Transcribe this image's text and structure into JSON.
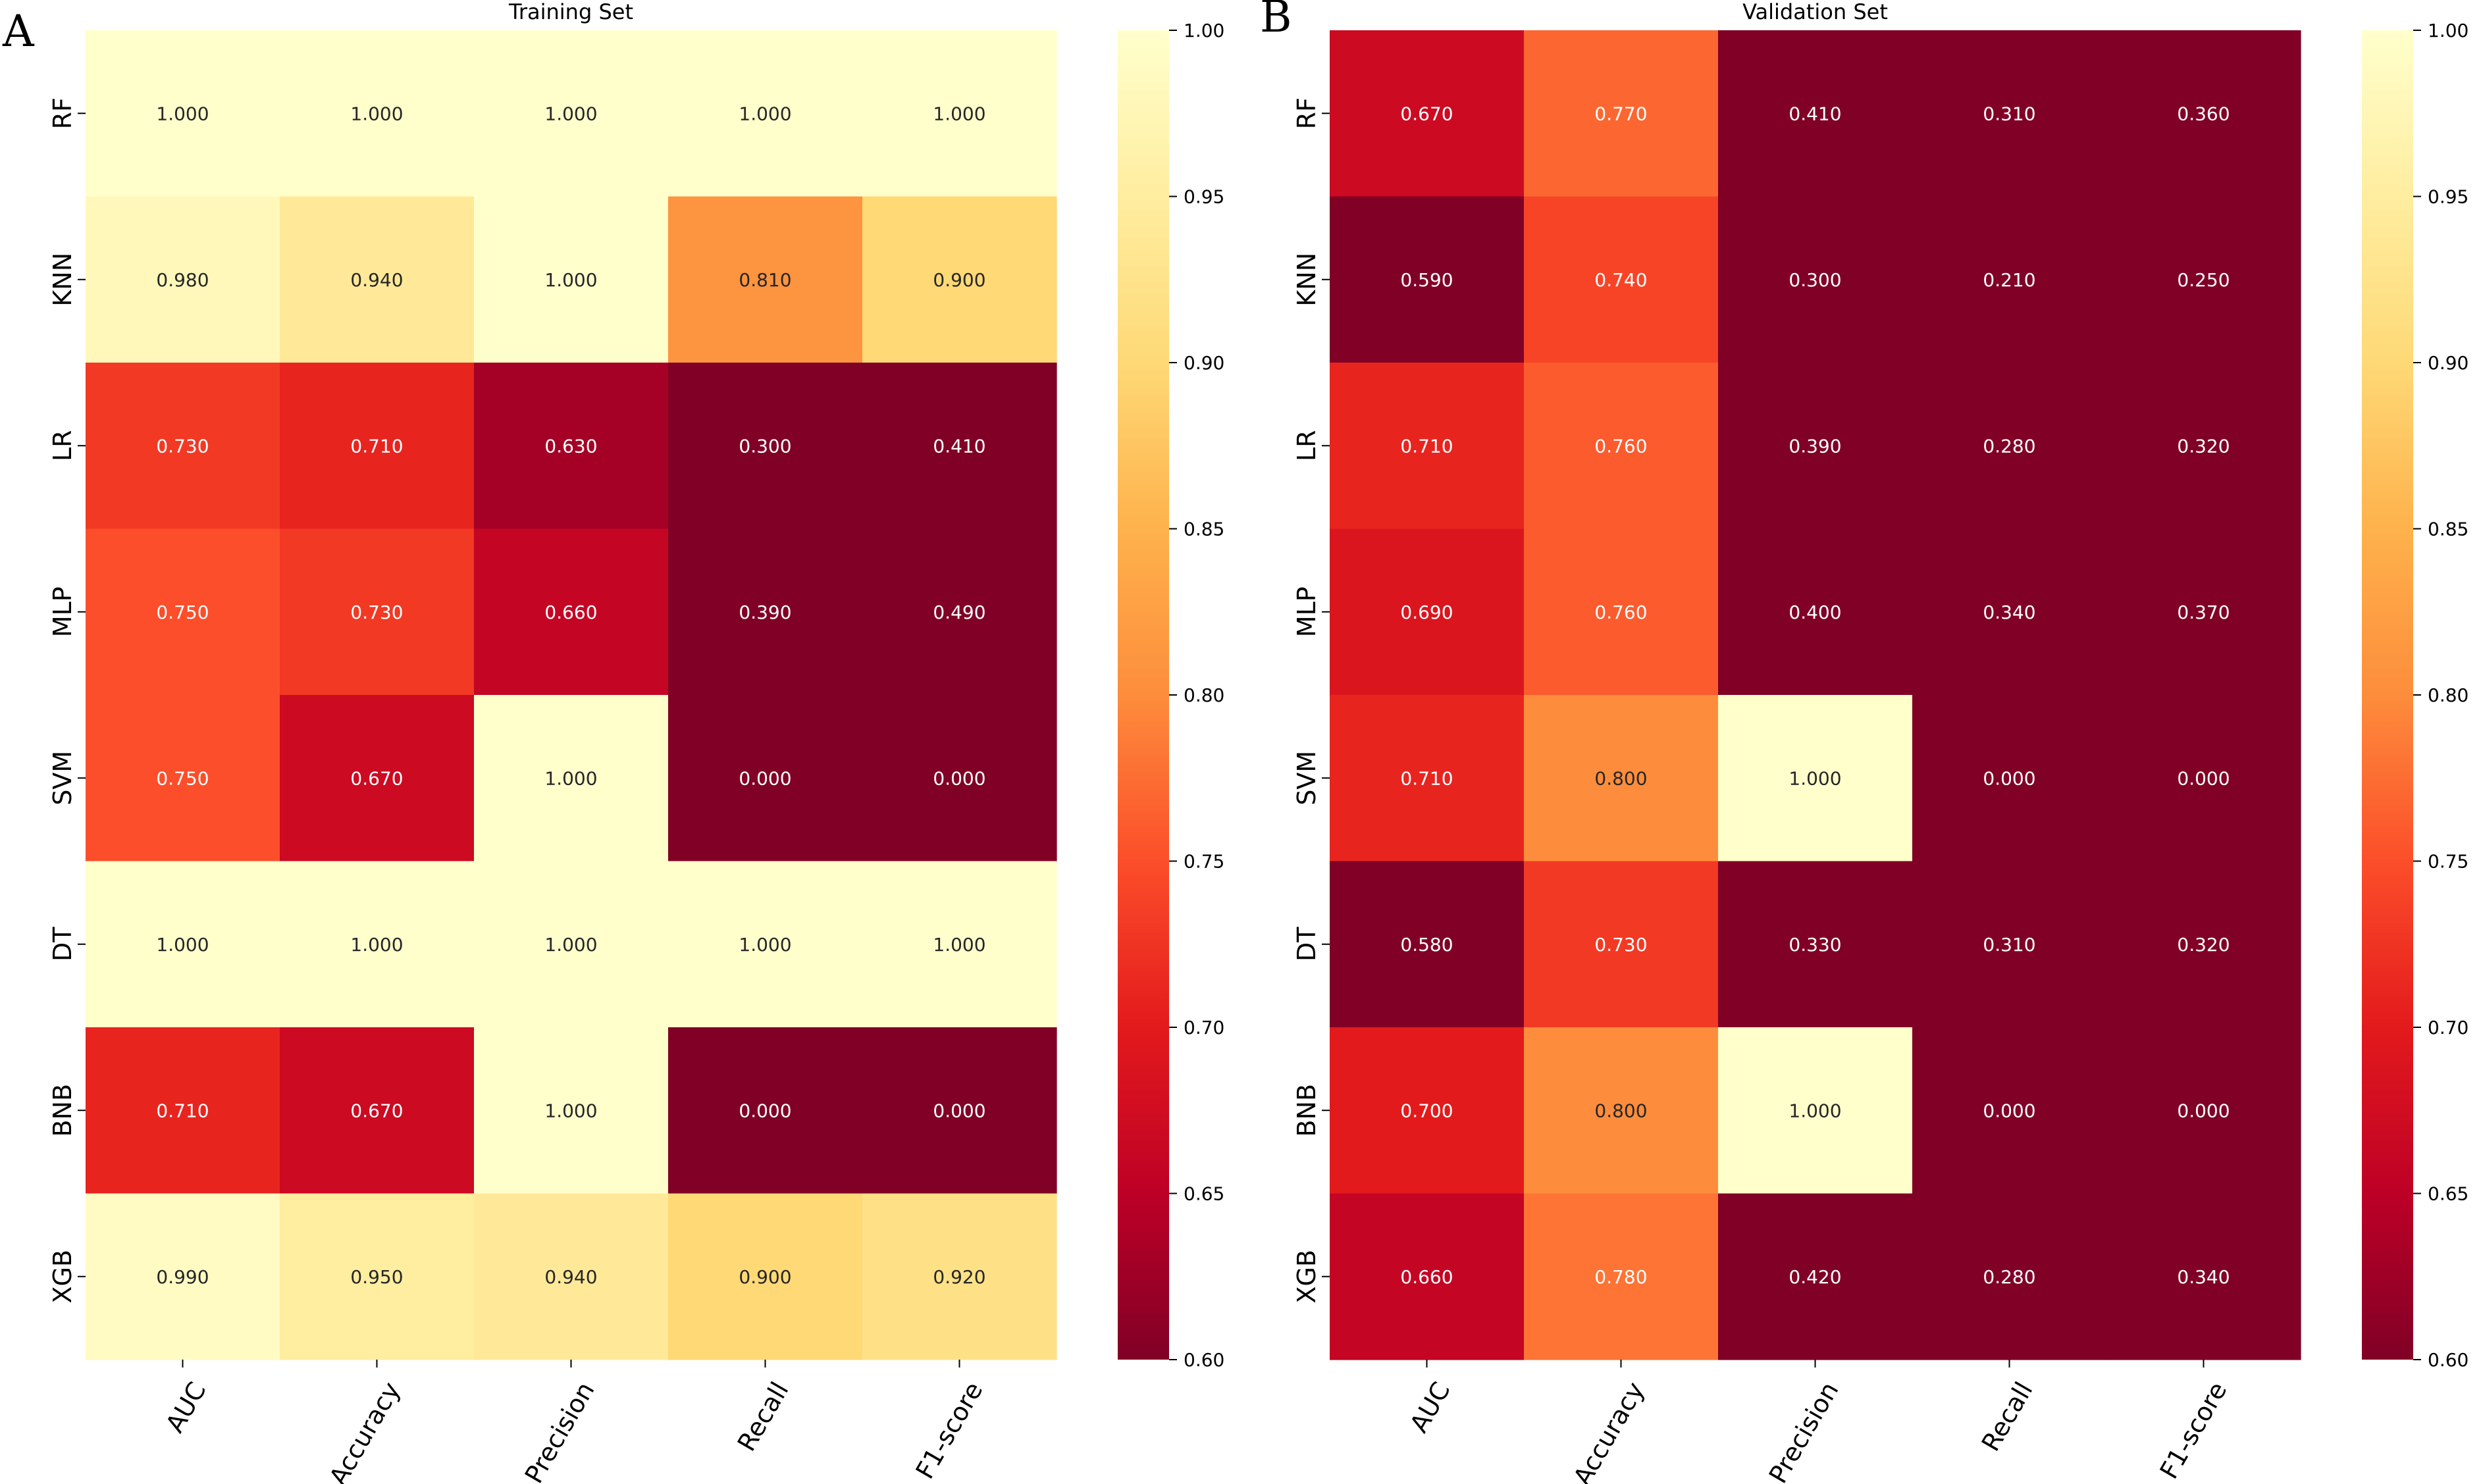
{
  "colors": {
    "scale": [
      "#800026",
      "#bd0026",
      "#e31a1c",
      "#fc4e2a",
      "#fd8d3c",
      "#feb24c",
      "#fed976",
      "#ffeda0",
      "#ffffcc"
    ],
    "background": "#ffffff",
    "axis": "#000000"
  },
  "chart_data": [
    {
      "type": "heatmap",
      "panel": "A",
      "title": "Training Set",
      "rows": [
        "RF",
        "KNN",
        "LR",
        "MLP",
        "SVM",
        "DT",
        "BNB",
        "XGB"
      ],
      "columns": [
        "AUC",
        "Accuracy",
        "Precision",
        "Recall",
        "F1-score"
      ],
      "values": [
        [
          1.0,
          1.0,
          1.0,
          1.0,
          1.0
        ],
        [
          0.98,
          0.94,
          1.0,
          0.81,
          0.9
        ],
        [
          0.73,
          0.71,
          0.63,
          0.3,
          0.41
        ],
        [
          0.75,
          0.73,
          0.66,
          0.39,
          0.49
        ],
        [
          0.75,
          0.67,
          1.0,
          0.0,
          0.0
        ],
        [
          1.0,
          1.0,
          1.0,
          1.0,
          1.0
        ],
        [
          0.71,
          0.67,
          1.0,
          0.0,
          0.0
        ],
        [
          0.99,
          0.95,
          0.94,
          0.9,
          0.92
        ]
      ],
      "cell_labels": [
        [
          "1.000",
          "1.000",
          "1.000",
          "1.000",
          "1.000"
        ],
        [
          "0.980",
          "0.940",
          "1.000",
          "0.810",
          "0.900"
        ],
        [
          "0.730",
          "0.710",
          "0.630",
          "0.300",
          "0.410"
        ],
        [
          "0.750",
          "0.730",
          "0.660",
          "0.390",
          "0.490"
        ],
        [
          "0.750",
          "0.670",
          "1.000",
          "0.000",
          "0.000"
        ],
        [
          "1.000",
          "1.000",
          "1.000",
          "1.000",
          "1.000"
        ],
        [
          "0.710",
          "0.670",
          "1.000",
          "0.000",
          "0.000"
        ],
        [
          "0.990",
          "0.950",
          "0.940",
          "0.900",
          "0.920"
        ]
      ],
      "vmin": 0.6,
      "vmax": 1.0,
      "colorbar_ticks": [
        "0.60",
        "0.65",
        "0.70",
        "0.75",
        "0.80",
        "0.85",
        "0.90",
        "0.95",
        "1.00"
      ]
    },
    {
      "type": "heatmap",
      "panel": "B",
      "title": "Validation Set",
      "rows": [
        "RF",
        "KNN",
        "LR",
        "MLP",
        "SVM",
        "DT",
        "BNB",
        "XGB"
      ],
      "columns": [
        "AUC",
        "Accuracy",
        "Precision",
        "Recall",
        "F1-score"
      ],
      "values": [
        [
          0.67,
          0.77,
          0.41,
          0.31,
          0.36
        ],
        [
          0.59,
          0.74,
          0.3,
          0.21,
          0.25
        ],
        [
          0.71,
          0.76,
          0.39,
          0.28,
          0.32
        ],
        [
          0.69,
          0.76,
          0.4,
          0.34,
          0.37
        ],
        [
          0.71,
          0.8,
          1.0,
          0.0,
          0.0
        ],
        [
          0.58,
          0.73,
          0.33,
          0.31,
          0.32
        ],
        [
          0.7,
          0.8,
          1.0,
          0.0,
          0.0
        ],
        [
          0.66,
          0.78,
          0.42,
          0.28,
          0.34
        ]
      ],
      "cell_labels": [
        [
          "0.670",
          "0.770",
          "0.410",
          "0.310",
          "0.360"
        ],
        [
          "0.590",
          "0.740",
          "0.300",
          "0.210",
          "0.250"
        ],
        [
          "0.710",
          "0.760",
          "0.390",
          "0.280",
          "0.320"
        ],
        [
          "0.690",
          "0.760",
          "0.400",
          "0.340",
          "0.370"
        ],
        [
          "0.710",
          "0.800",
          "1.000",
          "0.000",
          "0.000"
        ],
        [
          "0.580",
          "0.730",
          "0.330",
          "0.310",
          "0.320"
        ],
        [
          "0.700",
          "0.800",
          "1.000",
          "0.000",
          "0.000"
        ],
        [
          "0.660",
          "0.780",
          "0.420",
          "0.280",
          "0.340"
        ]
      ],
      "vmin": 0.6,
      "vmax": 1.0,
      "colorbar_ticks": [
        "0.60",
        "0.65",
        "0.70",
        "0.75",
        "0.80",
        "0.85",
        "0.90",
        "0.95",
        "1.00"
      ]
    }
  ]
}
